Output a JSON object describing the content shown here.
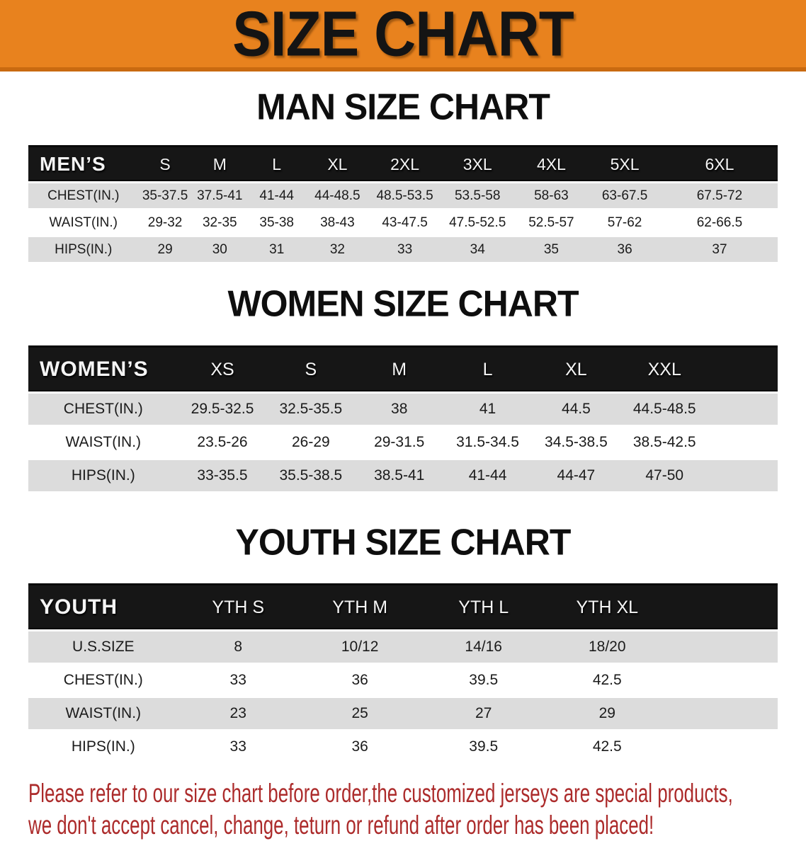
{
  "colors": {
    "banner_bg": "#E8821E",
    "banner_bg_dark": "#C96A10",
    "header_bar": "#161616",
    "row_stripe": "#DCDCDC",
    "footer_red": "#AC2B2B"
  },
  "banner": {
    "title": "SIZE CHART"
  },
  "men": {
    "heading": "MAN SIZE CHART",
    "table": {
      "header": [
        "MEN’S",
        "S",
        "M",
        "L",
        "XL",
        "2XL",
        "3XL",
        "4XL",
        "5XL",
        "6XL"
      ],
      "rows": [
        [
          "CHEST(IN.)",
          "35-37.5",
          "37.5-41",
          "41-44",
          "44-48.5",
          "48.5-53.5",
          "53.5-58",
          "58-63",
          "63-67.5",
          "67.5-72"
        ],
        [
          "WAIST(IN.)",
          "29-32",
          "32-35",
          "35-38",
          "38-43",
          "43-47.5",
          "47.5-52.5",
          "52.5-57",
          "57-62",
          "62-66.5"
        ],
        [
          "HIPS(IN.)",
          "29",
          "30",
          "31",
          "32",
          "33",
          "34",
          "35",
          "36",
          "37"
        ]
      ]
    }
  },
  "women": {
    "heading": "WOMEN SIZE CHART",
    "table": {
      "header": [
        "WOMEN’S",
        "XS",
        "S",
        "M",
        "L",
        "XL",
        "XXL"
      ],
      "rows": [
        [
          "CHEST(IN.)",
          "29.5-32.5",
          "32.5-35.5",
          "38",
          "41",
          "44.5",
          "44.5-48.5"
        ],
        [
          "WAIST(IN.)",
          "23.5-26",
          "26-29",
          "29-31.5",
          "31.5-34.5",
          "34.5-38.5",
          "38.5-42.5"
        ],
        [
          "HIPS(IN.)",
          "33-35.5",
          "35.5-38.5",
          "38.5-41",
          "41-44",
          "44-47",
          "47-50"
        ]
      ]
    }
  },
  "youth": {
    "heading": "YOUTH SIZE CHART",
    "table": {
      "header": [
        "YOUTH",
        "YTH S",
        "YTH M",
        "YTH L",
        "YTH XL"
      ],
      "rows": [
        [
          "U.S.SIZE",
          "8",
          "10/12",
          "14/16",
          "18/20"
        ],
        [
          "CHEST(IN.)",
          "33",
          "36",
          "39.5",
          "42.5"
        ],
        [
          "WAIST(IN.)",
          "23",
          "25",
          "27",
          "29"
        ],
        [
          "HIPS(IN.)",
          "33",
          "36",
          "39.5",
          "42.5"
        ]
      ]
    }
  },
  "footer": {
    "line1": "Please refer to our size chart before order,the customized jerseys are special products,",
    "line2": "we don't accept cancel, change, teturn or refund after order has been placed!"
  }
}
